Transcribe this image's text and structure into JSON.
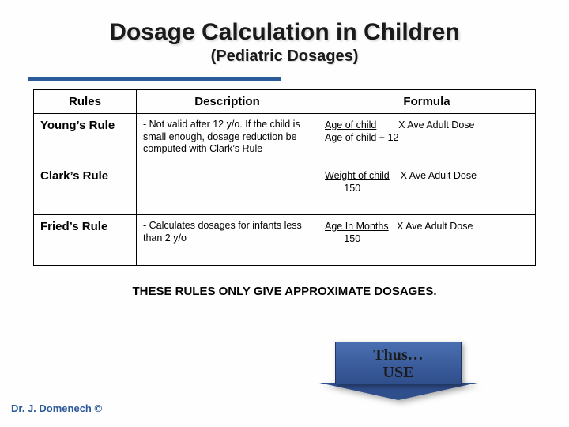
{
  "title": "Dosage Calculation in Children",
  "subtitle": "(Pediatric Dosages)",
  "colors": {
    "accent": "#2c5b9a",
    "arrow_top": "#4a6fb0",
    "arrow_bottom": "#2f4e8c",
    "text": "#1a1a1a",
    "bg": "#fefefe"
  },
  "table": {
    "headers": {
      "rules": "Rules",
      "description": "Description",
      "formula": "Formula"
    },
    "rows": [
      {
        "name": "Young’s Rule",
        "desc": "- Not valid after 12 y/o. If the child is small enough, dosage reduction be computed with Clark’s Rule",
        "formula": {
          "num": "Age of child",
          "denom": "Age of child + 12",
          "mult": "X   Ave Adult Dose"
        }
      },
      {
        "name": "Clark’s Rule",
        "desc": "",
        "formula": {
          "num": "Weight of child",
          "denom": "       150",
          "mult": "X  Ave Adult Dose"
        }
      },
      {
        "name": "Fried’s Rule",
        "desc": "- Calculates dosages for infants less than 2 y/o",
        "formula": {
          "num": "Age In Months",
          "denom": "       150",
          "mult": "X   Ave Adult Dose"
        }
      }
    ]
  },
  "note": "THESE RULES ONLY GIVE APPROXIMATE DOSAGES.",
  "arrow": {
    "line1": "Thus…",
    "line2": "USE"
  },
  "footer": "Dr. J. Domenech  ©"
}
